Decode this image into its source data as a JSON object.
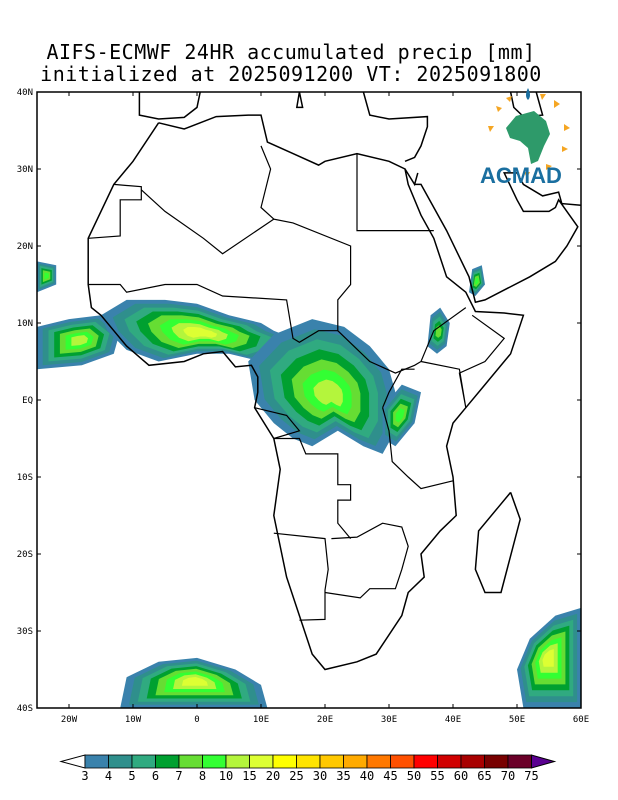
{
  "title_line1": "AIFS-ECMWF 24HR accumulated precip [mm]",
  "title_line2": "initialized at 2025091200 VT: 2025091800",
  "logo_text": "ACMAD",
  "chart_data": {
    "type": "heatmap",
    "title": "AIFS-ECMWF 24HR accumulated precip [mm]",
    "subtitle": "initialized at 2025091200 VT: 2025091800",
    "xlim": [
      -25,
      60
    ],
    "ylim": [
      -40,
      40
    ],
    "x_ticks": [
      {
        "v": -20,
        "label": "20W"
      },
      {
        "v": -10,
        "label": "10W"
      },
      {
        "v": 0,
        "label": "0"
      },
      {
        "v": 10,
        "label": "10E"
      },
      {
        "v": 20,
        "label": "20E"
      },
      {
        "v": 30,
        "label": "30E"
      },
      {
        "v": 40,
        "label": "40E"
      },
      {
        "v": 50,
        "label": "50E"
      },
      {
        "v": 60,
        "label": "60E"
      }
    ],
    "y_ticks": [
      {
        "v": 40,
        "label": "40N"
      },
      {
        "v": 30,
        "label": "30N"
      },
      {
        "v": 20,
        "label": "20N"
      },
      {
        "v": 10,
        "label": "10N"
      },
      {
        "v": 0,
        "label": "EQ"
      },
      {
        "v": -10,
        "label": "10S"
      },
      {
        "v": -20,
        "label": "20S"
      },
      {
        "v": -30,
        "label": "30S"
      },
      {
        "v": -40,
        "label": "40S"
      }
    ],
    "colorbar": {
      "levels": [
        "3",
        "4",
        "5",
        "6",
        "7",
        "8",
        "10",
        "15",
        "20",
        "25",
        "30",
        "35",
        "40",
        "45",
        "50",
        "55",
        "60",
        "65",
        "70",
        "75"
      ],
      "colors": [
        "#3a82ac",
        "#2f8f8c",
        "#30aa80",
        "#00a030",
        "#66dd33",
        "#33ff33",
        "#b4f53c",
        "#ddff33",
        "#ffff00",
        "#ffe400",
        "#ffc800",
        "#ffaa00",
        "#ff7800",
        "#ff5000",
        "#ff0000",
        "#d00000",
        "#a80000",
        "#780000",
        "#6a0028"
      ],
      "over_color": "#5a0090",
      "under_color": "#ffffff"
    },
    "rain_regions": [
      {
        "name": "atlantic-itcz",
        "poly": [
          [
            -25,
            4
          ],
          [
            -25,
            9.5
          ],
          [
            -20,
            10.5
          ],
          [
            -15,
            11
          ],
          [
            -12,
            9
          ],
          [
            -13,
            6
          ],
          [
            -18,
            4.5
          ]
        ],
        "max_level": 7
      },
      {
        "name": "west-africa",
        "poly": [
          [
            -15,
            11
          ],
          [
            -11,
            13
          ],
          [
            -5,
            13
          ],
          [
            0,
            12.5
          ],
          [
            5,
            11
          ],
          [
            10,
            10
          ],
          [
            12,
            9
          ],
          [
            15,
            8
          ],
          [
            14,
            6
          ],
          [
            10,
            5
          ],
          [
            5,
            6
          ],
          [
            0,
            6
          ],
          [
            -6,
            5
          ],
          [
            -11,
            6.5
          ],
          [
            -14,
            9
          ]
        ],
        "max_level": 8
      },
      {
        "name": "congo-basin",
        "poly": [
          [
            8,
            5
          ],
          [
            12,
            8.5
          ],
          [
            18,
            10.5
          ],
          [
            23,
            9.5
          ],
          [
            27,
            7
          ],
          [
            30,
            4
          ],
          [
            31,
            1
          ],
          [
            31,
            -4
          ],
          [
            29,
            -7
          ],
          [
            26,
            -6
          ],
          [
            22,
            -4
          ],
          [
            18,
            -6
          ],
          [
            15,
            -5
          ],
          [
            12,
            -3
          ],
          [
            9,
            0
          ]
        ],
        "max_level": 7
      },
      {
        "name": "lake-victoria",
        "poly": [
          [
            29,
            -1
          ],
          [
            32,
            2
          ],
          [
            35,
            1
          ],
          [
            34,
            -3
          ],
          [
            31,
            -6
          ],
          [
            29,
            -5
          ]
        ],
        "max_level": 6
      },
      {
        "name": "ethiopia",
        "poly": [
          [
            36,
            7
          ],
          [
            36.5,
            11
          ],
          [
            38,
            12
          ],
          [
            39.5,
            10
          ],
          [
            39,
            7
          ],
          [
            37.5,
            6
          ]
        ],
        "max_level": 5
      },
      {
        "name": "yemen",
        "poly": [
          [
            42.5,
            14
          ],
          [
            43,
            17
          ],
          [
            44.5,
            17.5
          ],
          [
            45,
            15
          ],
          [
            43.5,
            13.5
          ]
        ],
        "max_level": 6
      },
      {
        "name": "cape-verde",
        "poly": [
          [
            -25,
            14
          ],
          [
            -25,
            18
          ],
          [
            -22,
            17.5
          ],
          [
            -22,
            15
          ]
        ],
        "max_level": 6
      },
      {
        "name": "south-atlantic",
        "poly": [
          [
            -12,
            -40
          ],
          [
            -11,
            -36
          ],
          [
            -6,
            -34
          ],
          [
            0,
            -33.5
          ],
          [
            6,
            -35
          ],
          [
            10,
            -37
          ],
          [
            11,
            -40
          ]
        ],
        "max_level": 8
      },
      {
        "name": "south-indian",
        "poly": [
          [
            51,
            -40
          ],
          [
            50,
            -35
          ],
          [
            52,
            -31
          ],
          [
            56,
            -28
          ],
          [
            60,
            -27
          ],
          [
            60,
            -40
          ]
        ],
        "max_level": 8
      }
    ]
  }
}
